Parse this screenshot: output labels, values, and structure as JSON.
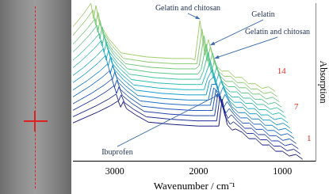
{
  "chart_data": {
    "type": "line",
    "x_label": "Wavenumber / cm⁻¹",
    "y_label": "Absorption",
    "xlim": [
      3500,
      600
    ],
    "xticks": [
      3000,
      2000,
      1000
    ],
    "ylim": [
      0,
      100
    ],
    "tick_labels": "x",
    "grid": false,
    "series": [
      {
        "name": "1",
        "color": "#1a1a80",
        "x": [
          3500,
          3200,
          3050,
          2960,
          2930,
          2900,
          2860,
          2750,
          2600,
          2300,
          2000,
          1820,
          1760,
          1720,
          1660,
          1600,
          1560,
          1480,
          1400,
          1320,
          1240,
          1160,
          1080,
          1000,
          920,
          840,
          760
        ],
        "values": [
          24,
          31,
          35,
          38,
          34,
          37.5,
          33,
          29,
          24.5,
          23,
          22,
          22,
          22,
          39,
          23,
          19.4,
          20.2,
          18,
          14,
          14,
          10,
          10,
          6,
          6,
          3,
          4,
          1
        ]
      },
      {
        "color": "#1f2e96",
        "x": [
          3525,
          3225,
          3075,
          2985,
          2955,
          2925,
          2885,
          2775,
          2625,
          2325,
          2025,
          1845,
          1785,
          1745,
          1685,
          1625,
          1585,
          1505,
          1425,
          1345,
          1265,
          1185,
          1105,
          1025,
          945,
          865,
          785
        ],
        "values": [
          27.3,
          34.8,
          39.1,
          42.3,
          38,
          41.8,
          36.9,
          32.6,
          27.9,
          26.3,
          25.3,
          25.3,
          25.3,
          41.3,
          28.3,
          23.1,
          24.7,
          21.3,
          17.3,
          17.3,
          13.3,
          13.3,
          9.3,
          9.3,
          6.3,
          7.3,
          4.3
        ]
      },
      {
        "color": "#2140aa",
        "x": [
          3550,
          3250,
          3100,
          3010,
          2980,
          2950,
          2910,
          2800,
          2650,
          2350,
          2050,
          1870,
          1810,
          1770,
          1710,
          1650,
          1610,
          1530,
          1450,
          1370,
          1290,
          1210,
          1130,
          1050,
          970,
          890,
          810
        ],
        "values": [
          30.6,
          39.1,
          44,
          47.6,
          42.7,
          47,
          41.4,
          36.5,
          31.3,
          29.6,
          28.6,
          28.6,
          28.6,
          42.6,
          33.6,
          26.8,
          29.2,
          24.6,
          20.6,
          20.6,
          16.6,
          16.6,
          12.6,
          12.6,
          9.6,
          10.6,
          7.6
        ]
      },
      {
        "color": "#2255bb",
        "x": [
          3575,
          3275,
          3125,
          3035,
          3005,
          2975,
          2935,
          2825,
          2675,
          2375,
          2075,
          1895,
          1835,
          1795,
          1735,
          1675,
          1635,
          1555,
          1475,
          1395,
          1315,
          1235,
          1155,
          1075,
          995,
          915,
          835
        ],
        "values": [
          33.9,
          42.9,
          48.1,
          51.9,
          46.7,
          51.2,
          45.3,
          40.1,
          34.6,
          32.9,
          31.9,
          31.9,
          31.9,
          44.9,
          37.9,
          30.3,
          33.1,
          27.9,
          23.9,
          23.9,
          19.9,
          19.9,
          15.9,
          15.9,
          12.9,
          13.9,
          10.9
        ]
      },
      {
        "color": "#1f6cc6",
        "x": [
          3600,
          3300,
          3150,
          3060,
          3030,
          3000,
          2960,
          2850,
          2700,
          2400,
          2100,
          1920,
          1860,
          1820,
          1760,
          1700,
          1660,
          1580,
          1500,
          1420,
          1340,
          1260,
          1180,
          1100,
          1020,
          940,
          860
        ],
        "values": [
          37.2,
          47.2,
          53,
          57.2,
          51.4,
          56.4,
          49.8,
          44,
          38,
          36.2,
          35.2,
          35.2,
          35.2,
          46.2,
          43.2,
          34,
          37.6,
          31.2,
          27.2,
          27.2,
          23.2,
          23.2,
          19.2,
          19.2,
          16.2,
          17.2,
          14.2
        ]
      },
      {
        "color": "#1a84cc",
        "x": [
          3625,
          3325,
          3175,
          3085,
          3055,
          3025,
          2985,
          2875,
          2725,
          2425,
          2125,
          1945,
          1885,
          1845,
          1785,
          1725,
          1685,
          1605,
          1525,
          1445,
          1365,
          1285,
          1205,
          1125,
          1045,
          965,
          885
        ],
        "values": [
          40.5,
          51,
          57.1,
          61.5,
          55.4,
          60.7,
          53.7,
          47.6,
          41.4,
          39.5,
          38.5,
          38.5,
          38.5,
          48.5,
          48.5,
          37.7,
          42.1,
          34.5,
          30.5,
          30.5,
          26.5,
          26.5,
          22.5,
          22.5,
          19.5,
          20.5,
          17.5
        ]
      },
      {
        "name": "7",
        "color": "#199ccc",
        "x": [
          3650,
          3350,
          3200,
          3110,
          3080,
          3050,
          3010,
          2900,
          2750,
          2450,
          2150,
          1970,
          1910,
          1870,
          1810,
          1750,
          1710,
          1630,
          1550,
          1470,
          1390,
          1310,
          1230,
          1150,
          1070,
          990,
          910
        ],
        "values": [
          43.8,
          55.3,
          62,
          66.8,
          60.1,
          65.9,
          58.2,
          51.5,
          44.8,
          42.8,
          41.8,
          41.8,
          41.8,
          50.8,
          53.8,
          41.4,
          46.6,
          37.8,
          33.8,
          33.8,
          29.8,
          29.8,
          25.8,
          25.8,
          22.8,
          23.8,
          20.8
        ]
      },
      {
        "color": "#20b0c4",
        "x": [
          3675,
          3375,
          3225,
          3135,
          3105,
          3075,
          3035,
          2925,
          2775,
          2475,
          2175,
          1995,
          1935,
          1895,
          1835,
          1775,
          1735,
          1655,
          1575,
          1495,
          1415,
          1335,
          1255,
          1175,
          1095,
          1015,
          935
        ],
        "values": [
          47.1,
          59.1,
          66.1,
          71.1,
          64.1,
          70.1,
          62.1,
          55.1,
          48.1,
          46.1,
          45.1,
          45.1,
          45.1,
          52.1,
          58.1,
          44.9,
          50.5,
          41.1,
          37.1,
          37.1,
          33.1,
          33.1,
          29.1,
          29.1,
          26.1,
          27.1,
          24.1
        ]
      },
      {
        "color": "#2fbcb0",
        "x": [
          3700,
          3400,
          3250,
          3160,
          3130,
          3100,
          3060,
          2950,
          2800,
          2500,
          2200,
          2020,
          1960,
          1920,
          1860,
          1800,
          1760,
          1680,
          1600,
          1520,
          1440,
          1360,
          1280,
          1200,
          1120,
          1040,
          960
        ],
        "values": [
          50.4,
          63.4,
          71,
          76.4,
          68.8,
          75.3,
          66.6,
          59,
          51.5,
          49.4,
          48.4,
          48.4,
          48.4,
          54.4,
          63.4,
          48.6,
          55,
          44.4,
          40.4,
          40.4,
          36.4,
          36.4,
          32.4,
          32.4,
          29.4,
          30.4,
          27.4
        ]
      },
      {
        "color": "#45c49c",
        "x": [
          3725,
          3425,
          3275,
          3185,
          3155,
          3125,
          3085,
          2975,
          2825,
          2525,
          2225,
          2045,
          1985,
          1945,
          1885,
          1825,
          1785,
          1705,
          1625,
          1545,
          1465,
          1385,
          1305,
          1225,
          1145,
          1065,
          985
        ],
        "values": [
          53.7,
          67.2,
          75.1,
          80.7,
          72.8,
          79.6,
          70.5,
          62.6,
          54.9,
          52.7,
          51.7,
          51.7,
          51.7,
          56.7,
          68.7,
          52.3,
          59.5,
          47.7,
          43.7,
          43.7,
          39.7,
          39.7,
          35.7,
          35.7,
          32.7,
          33.7,
          30.7
        ]
      },
      {
        "color": "#5ec78a",
        "x": [
          3750,
          3450,
          3300,
          3210,
          3180,
          3150,
          3110,
          3000,
          2850,
          2550,
          2250,
          2070,
          2010,
          1970,
          1910,
          1850,
          1810,
          1730,
          1650,
          1570,
          1490,
          1410,
          1330,
          1250,
          1170,
          1090,
          1010
        ],
        "values": [
          57,
          71.5,
          80,
          86,
          77.5,
          84.8,
          75,
          66.5,
          58.3,
          56,
          55,
          55,
          55,
          58,
          74,
          56,
          64,
          51,
          47,
          47,
          43,
          43,
          39,
          39,
          36,
          37,
          34
        ]
      },
      {
        "color": "#75c97c",
        "x": [
          3775,
          3475,
          3325,
          3235,
          3205,
          3175,
          3135,
          3025,
          2875,
          2575,
          2275,
          2095,
          2035,
          1995,
          1935,
          1875,
          1835,
          1755,
          1675,
          1595,
          1515,
          1435,
          1355,
          1275,
          1195,
          1115,
          1035
        ],
        "values": [
          60.3,
          75.3,
          84.1,
          90.3,
          81.5,
          89,
          78.9,
          70.1,
          61.6,
          59.3,
          58.3,
          58.3,
          58.3,
          60.3,
          79.3,
          59.7,
          68.5,
          54.3,
          50.3,
          50.3,
          46.3,
          46.3,
          42.3,
          42.3,
          39.3,
          40.3,
          37.3
        ]
      },
      {
        "color": "#8ccb72",
        "x": [
          3800,
          3500,
          3350,
          3260,
          3230,
          3200,
          3160,
          3050,
          2900,
          2600,
          2300,
          2120,
          2060,
          2020,
          1960,
          1900,
          1860,
          1780,
          1700,
          1620,
          1540,
          1460,
          1380,
          1300,
          1220,
          1140,
          1060
        ],
        "values": [
          63.6,
          79.6,
          89,
          95.6,
          86.2,
          94.2,
          83.4,
          74,
          65,
          62.6,
          61.6,
          61.6,
          61.6,
          61.6,
          83.6,
          63.2,
          72.4,
          57.6,
          53.6,
          53.6,
          49.6,
          49.6,
          45.6,
          45.6,
          42.6,
          43.6,
          40.6
        ]
      },
      {
        "name": "14",
        "color": "#a2cd6a",
        "x": [
          3825,
          3525,
          3375,
          3285,
          3255,
          3225,
          3185,
          3075,
          2925,
          2625,
          2325,
          2145,
          2085,
          2045,
          1985,
          1925,
          1885,
          1805,
          1725,
          1645,
          1565,
          1485,
          1405,
          1325,
          1245,
          1165,
          1085
        ],
        "values": [
          66.9,
          83.4,
          93.1,
          99.9,
          90.2,
          98.5,
          87.3,
          77.6,
          68.4,
          65.9,
          64.9,
          64.9,
          64.9,
          63.9,
          88.9,
          66.9,
          76.9,
          60.9,
          56.9,
          56.9,
          52.9,
          52.9,
          48.9,
          48.9,
          45.9,
          46.9,
          43.9
        ]
      }
    ],
    "annotations": [
      {
        "text": "Gelatin and chitosan",
        "x": 1985,
        "y": 88.9
      },
      {
        "text": "Gelatin",
        "x": 1860,
        "y": 72.4
      },
      {
        "text": "Gelatin and chitosan",
        "x": 1810,
        "y": 64
      },
      {
        "text": "Ibuprofen",
        "x": 1745,
        "y": 41.3
      }
    ]
  }
}
